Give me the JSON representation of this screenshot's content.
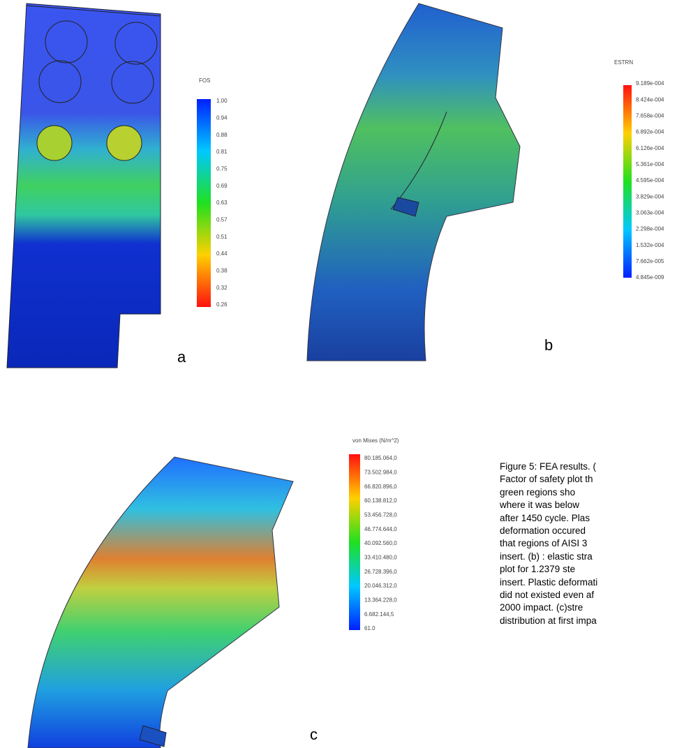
{
  "panels": [
    {
      "label": "a",
      "legend_title": "FOS",
      "ticks": [
        "1.00",
        "0.94",
        "0.88",
        "0.81",
        "0.75",
        "0.69",
        "0.63",
        "0.57",
        "0.51",
        "0.44",
        "0.38",
        "0.32",
        "0.26"
      ]
    },
    {
      "label": "b",
      "legend_title": "ESTRN",
      "ticks": [
        "9.189e-004",
        "8.424e-004",
        "7.658e-004",
        "6.892e-004",
        "6.126e-004",
        "5.361e-004",
        "4.595e-004",
        "3.829e-004",
        "3.063e-004",
        "2.298e-004",
        "1.532e-004",
        "7.662e-005",
        "4.845e-009"
      ]
    },
    {
      "label": "c",
      "legend_title": "von Mises (N/m^2)",
      "ticks": [
        "80.185.064,0",
        "73.502.984,0",
        "66.820.896,0",
        "60.138.812,0",
        "53.456.728,0",
        "46.774.644,0",
        "40.092.560,0",
        "33.410.480,0",
        "26.728.396,0",
        "20.046.312,0",
        "13.364.228,0",
        "6.682.144,5",
        "61.0"
      ]
    }
  ],
  "caption": {
    "lines": [
      "Figure 5: FEA results. (",
      "Factor of safety plot th",
      "green regions sho",
      "where it was below",
      "after 1450 cycle. Plas",
      "deformation occured",
      "that regions of AISI 3",
      "insert. (b) : elastic stra",
      "plot for 1.2379 ste",
      "insert. Plastic deformati",
      "did not existed even af",
      "2000 impact. (c)stre",
      "distribution at first impa"
    ]
  }
}
